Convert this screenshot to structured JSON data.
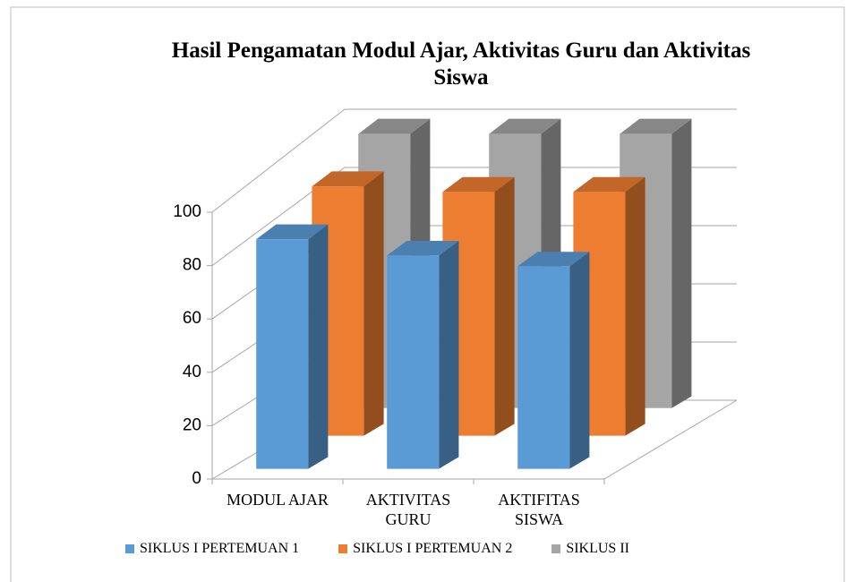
{
  "chart_data": {
    "type": "bar3d",
    "title": "Hasil Pengamatan Modul Ajar, Aktivitas Guru dan Aktivitas Siswa",
    "categories": [
      "MODUL AJAR",
      "AKTIVITAS GURU",
      "AKTIFITAS SISWA"
    ],
    "series": [
      {
        "name": "SIKLUS I PERTEMUAN 1",
        "color": "#5b9bd5",
        "values": [
          85,
          79,
          75
        ]
      },
      {
        "name": "SIKLUS I PERTEMUAN 2",
        "color": "#ed7d31",
        "values": [
          89,
          87,
          87
        ]
      },
      {
        "name": "SIKLUS II",
        "color": "#a5a5a5",
        "values": [
          95,
          95,
          95
        ]
      }
    ],
    "ylim": [
      0,
      100
    ],
    "yticks": [
      0,
      20,
      40,
      60,
      80,
      100
    ],
    "grid": true,
    "legend": "bottom"
  }
}
